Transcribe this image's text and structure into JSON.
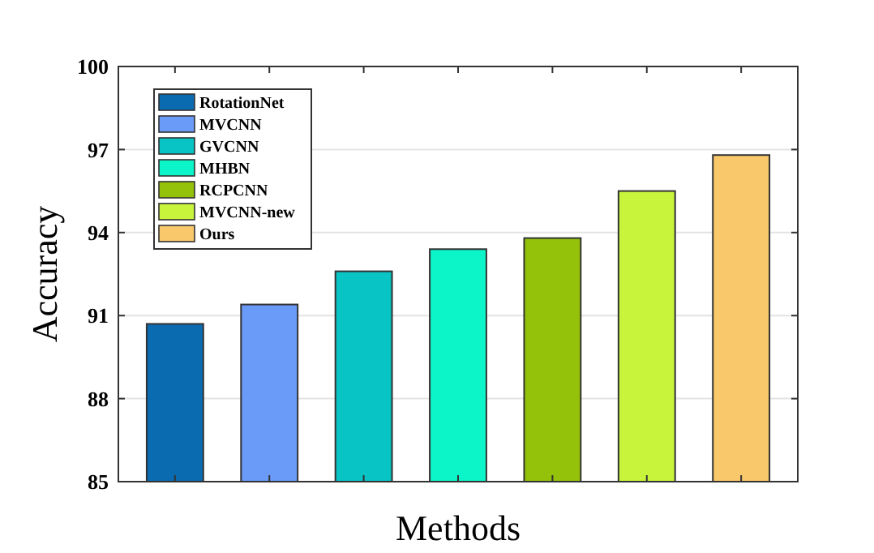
{
  "chart_data": {
    "type": "bar",
    "xlabel": "Methods",
    "ylabel": "Accuracy",
    "categories": [
      null,
      null,
      null,
      null,
      null,
      null,
      null
    ],
    "series": [
      {
        "name": "RotationNet",
        "color": "#0b6bb1",
        "values": [
          90.7,
          null,
          null,
          null,
          null,
          null,
          null
        ]
      },
      {
        "name": "MVCNN",
        "color": "#6b9bf9",
        "values": [
          null,
          91.4,
          null,
          null,
          null,
          null,
          null
        ]
      },
      {
        "name": "GVCNN",
        "color": "#08c4c4",
        "values": [
          null,
          null,
          92.6,
          null,
          null,
          null,
          null
        ]
      },
      {
        "name": "MHBN",
        "color": "#0cf5c8",
        "values": [
          null,
          null,
          null,
          93.4,
          null,
          null,
          null
        ]
      },
      {
        "name": "RCPCNN",
        "color": "#94c10a",
        "values": [
          null,
          null,
          null,
          null,
          93.8,
          null,
          null
        ]
      },
      {
        "name": "MVCNN-new",
        "color": "#c8f53c",
        "values": [
          null,
          null,
          null,
          null,
          null,
          95.5,
          null
        ]
      },
      {
        "name": "Ours",
        "color": "#f9c86b",
        "values": [
          null,
          null,
          null,
          null,
          null,
          null,
          96.8
        ]
      }
    ],
    "ylim": [
      85,
      100
    ],
    "yticks": [
      85,
      88,
      91,
      94,
      97,
      100
    ],
    "grid": "y",
    "legend": "top left"
  }
}
